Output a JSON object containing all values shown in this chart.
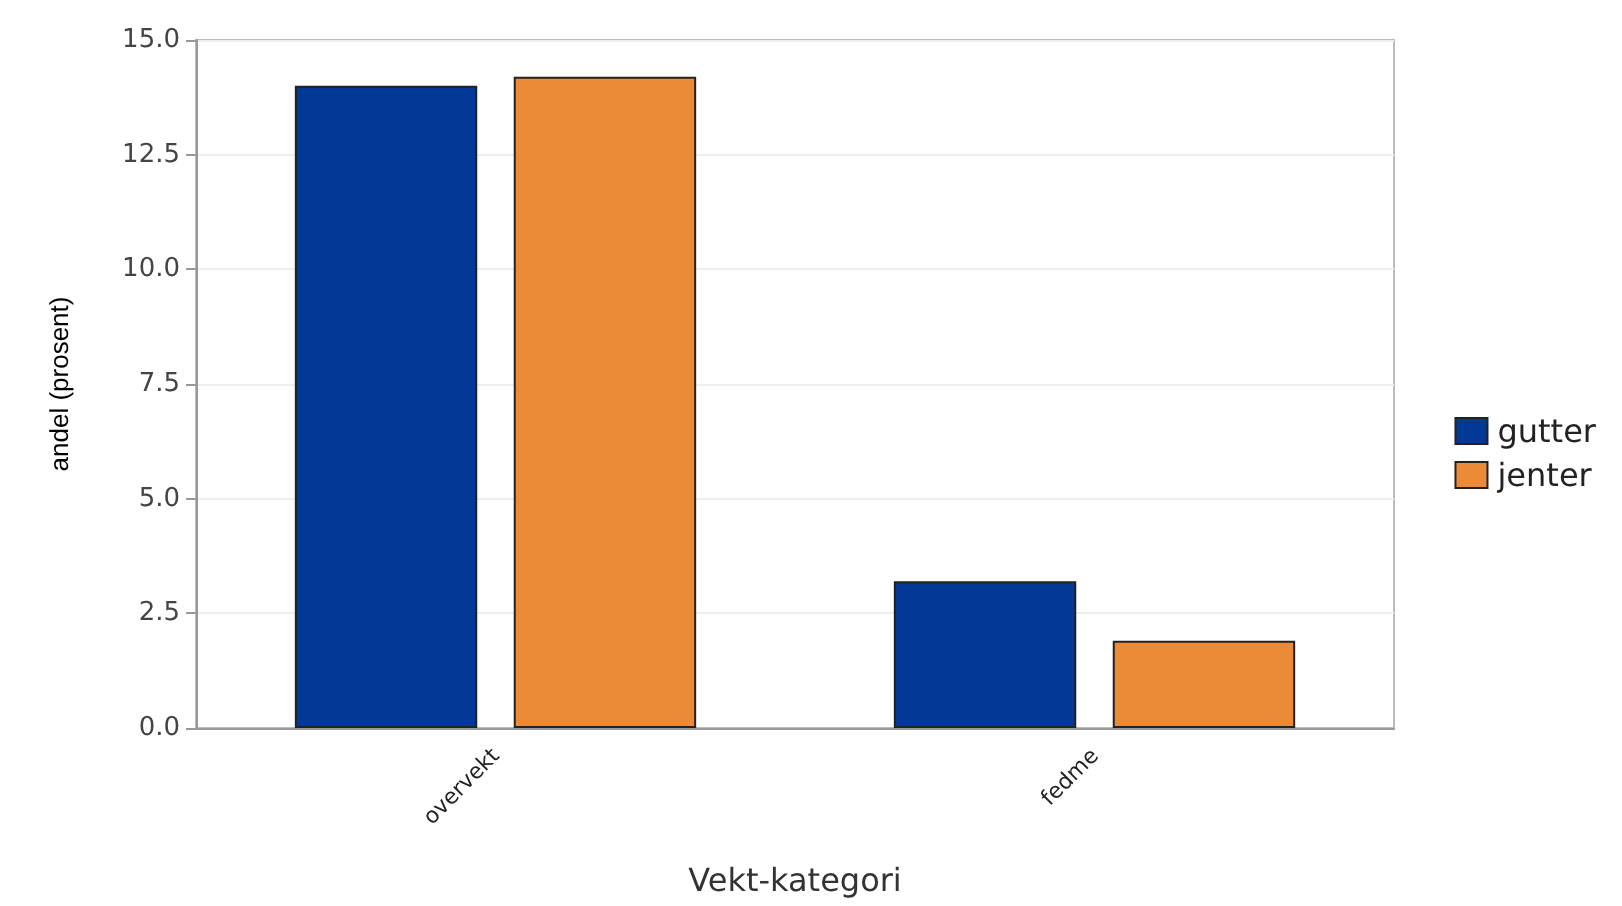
{
  "chart_data": {
    "type": "bar",
    "xlabel": "Vekt-kategori",
    "ylabel": "andel (prosent)",
    "categories": [
      "overvekt",
      "fedme"
    ],
    "series": [
      {
        "name": "gutter",
        "color": "#033996",
        "values": [
          14.0,
          3.2
        ]
      },
      {
        "name": "jenter",
        "color": "#eb8a37",
        "values": [
          14.2,
          1.9
        ]
      }
    ],
    "ylim": [
      0,
      15
    ],
    "yticks": [
      {
        "value": 0,
        "label": "0.0"
      },
      {
        "value": 2.5,
        "label": "2.5"
      },
      {
        "value": 5,
        "label": "5.0"
      },
      {
        "value": 7.5,
        "label": "7.5"
      },
      {
        "value": 10,
        "label": "10.0"
      },
      {
        "value": 12.5,
        "label": "12.5"
      },
      {
        "value": 15,
        "label": "15.0"
      }
    ],
    "grid": "y",
    "legend": "right"
  }
}
